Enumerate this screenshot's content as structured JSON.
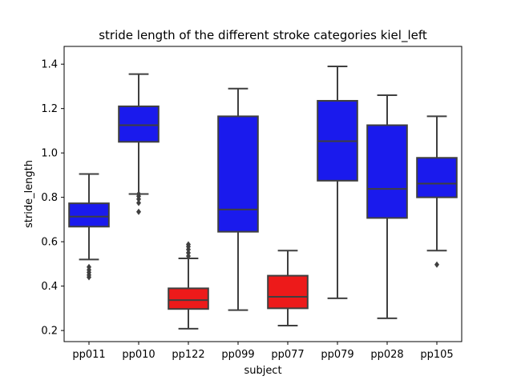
{
  "chart_data": {
    "type": "box",
    "title": "stride length of the different stroke categories kiel_left",
    "xlabel": "subject",
    "ylabel": "stride_length",
    "ylim": [
      0.15,
      1.48
    ],
    "yticks": [
      0.2,
      0.4,
      0.6,
      0.8,
      1.0,
      1.2,
      1.4
    ],
    "ytick_labels": [
      "0.2",
      "0.4",
      "0.6",
      "0.8",
      "1.0",
      "1.2",
      "1.4"
    ],
    "grid": false,
    "legend": "none",
    "categories": [
      "pp011",
      "pp010",
      "pp122",
      "pp099",
      "pp077",
      "pp079",
      "pp028",
      "pp105"
    ],
    "boxes": [
      {
        "category": "pp011",
        "whisker_low": 0.52,
        "q1": 0.668,
        "median": 0.713,
        "q3": 0.773,
        "whisker_high": 0.905,
        "outliers": [
          0.44,
          0.45,
          0.462,
          0.473,
          0.486
        ],
        "color": "#1a1aed"
      },
      {
        "category": "pp010",
        "whisker_low": 0.815,
        "q1": 1.05,
        "median": 1.125,
        "q3": 1.21,
        "whisker_high": 1.355,
        "outliers": [
          0.735,
          0.775,
          0.792,
          0.805,
          0.815
        ],
        "color": "#1a1aed"
      },
      {
        "category": "pp122",
        "whisker_low": 0.208,
        "q1": 0.297,
        "median": 0.337,
        "q3": 0.39,
        "whisker_high": 0.525,
        "outliers": [
          0.535,
          0.55,
          0.565,
          0.578,
          0.588
        ],
        "color": "#ed1a1a"
      },
      {
        "category": "pp099",
        "whisker_low": 0.292,
        "q1": 0.645,
        "median": 0.745,
        "q3": 1.165,
        "whisker_high": 1.29,
        "outliers": [],
        "color": "#1a1aed"
      },
      {
        "category": "pp077",
        "whisker_low": 0.222,
        "q1": 0.3,
        "median": 0.352,
        "q3": 0.447,
        "whisker_high": 0.56,
        "outliers": [],
        "color": "#ed1a1a"
      },
      {
        "category": "pp079",
        "whisker_low": 0.345,
        "q1": 0.875,
        "median": 1.053,
        "q3": 1.235,
        "whisker_high": 1.39,
        "outliers": [],
        "color": "#1a1aed"
      },
      {
        "category": "pp028",
        "whisker_low": 0.255,
        "q1": 0.707,
        "median": 0.838,
        "q3": 1.125,
        "whisker_high": 1.26,
        "outliers": [],
        "color": "#1a1aed"
      },
      {
        "category": "pp105",
        "whisker_low": 0.56,
        "q1": 0.8,
        "median": 0.862,
        "q3": 0.978,
        "whisker_high": 1.165,
        "outliers": [
          0.497
        ],
        "color": "#1a1aed"
      }
    ]
  }
}
